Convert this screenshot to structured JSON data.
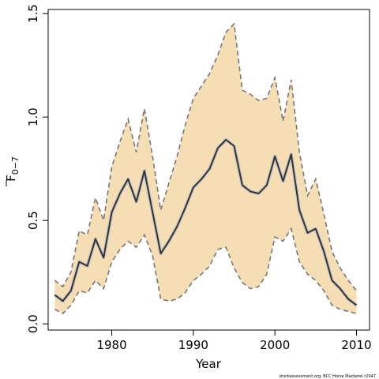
{
  "chart_data": {
    "type": "line",
    "title": "",
    "xlabel": "Year",
    "ylabel": "F",
    "ylabel_subscript": "0−7",
    "xlim": [
      1972.2,
      2011.6
    ],
    "ylim": [
      -0.03,
      1.52
    ],
    "xticks": [
      1980,
      1990,
      2000,
      2010
    ],
    "yticks": [
      0.0,
      0.5,
      1.0,
      1.5
    ],
    "ytick_labels": [
      "0.0",
      "0.5",
      "1.0",
      "1.5"
    ],
    "grid": false,
    "legend": "none",
    "x": [
      1973,
      1974,
      1975,
      1976,
      1977,
      1978,
      1979,
      1980,
      1981,
      1982,
      1983,
      1984,
      1985,
      1986,
      1987,
      1988,
      1989,
      1990,
      1991,
      1992,
      1993,
      1994,
      1995,
      1996,
      1997,
      1998,
      1999,
      2000,
      2001,
      2002,
      2003,
      2004,
      2005,
      2006,
      2007,
      2008,
      2009,
      2010
    ],
    "series": [
      {
        "role": "estimate",
        "values": [
          0.14,
          0.11,
          0.16,
          0.3,
          0.28,
          0.41,
          0.32,
          0.54,
          0.63,
          0.7,
          0.59,
          0.74,
          0.54,
          0.34,
          0.4,
          0.47,
          0.56,
          0.66,
          0.7,
          0.75,
          0.85,
          0.89,
          0.86,
          0.67,
          0.64,
          0.63,
          0.67,
          0.81,
          0.69,
          0.82,
          0.55,
          0.44,
          0.46,
          0.35,
          0.21,
          0.17,
          0.12,
          0.09
        ],
        "color": "#333333"
      },
      {
        "role": "upper-bound",
        "values": [
          0.21,
          0.18,
          0.25,
          0.45,
          0.43,
          0.61,
          0.5,
          0.76,
          0.88,
          0.99,
          0.83,
          1.04,
          0.81,
          0.55,
          0.68,
          0.81,
          0.96,
          1.09,
          1.15,
          1.21,
          1.3,
          1.41,
          1.45,
          1.13,
          1.11,
          1.08,
          1.09,
          1.19,
          0.98,
          1.18,
          0.83,
          0.62,
          0.7,
          0.53,
          0.35,
          0.27,
          0.21,
          0.16
        ],
        "color": "#777777"
      },
      {
        "role": "lower-bound",
        "values": [
          0.07,
          0.05,
          0.09,
          0.16,
          0.15,
          0.21,
          0.17,
          0.3,
          0.36,
          0.4,
          0.37,
          0.43,
          0.33,
          0.12,
          0.11,
          0.12,
          0.15,
          0.21,
          0.24,
          0.28,
          0.36,
          0.37,
          0.27,
          0.2,
          0.17,
          0.18,
          0.24,
          0.42,
          0.4,
          0.46,
          0.3,
          0.24,
          0.21,
          0.16,
          0.09,
          0.07,
          0.06,
          0.05
        ],
        "color": "#777777"
      }
    ],
    "band_color": "#f5deb3",
    "credit": "stockassessment.org, BCC Horse Mackerel r2047"
  }
}
